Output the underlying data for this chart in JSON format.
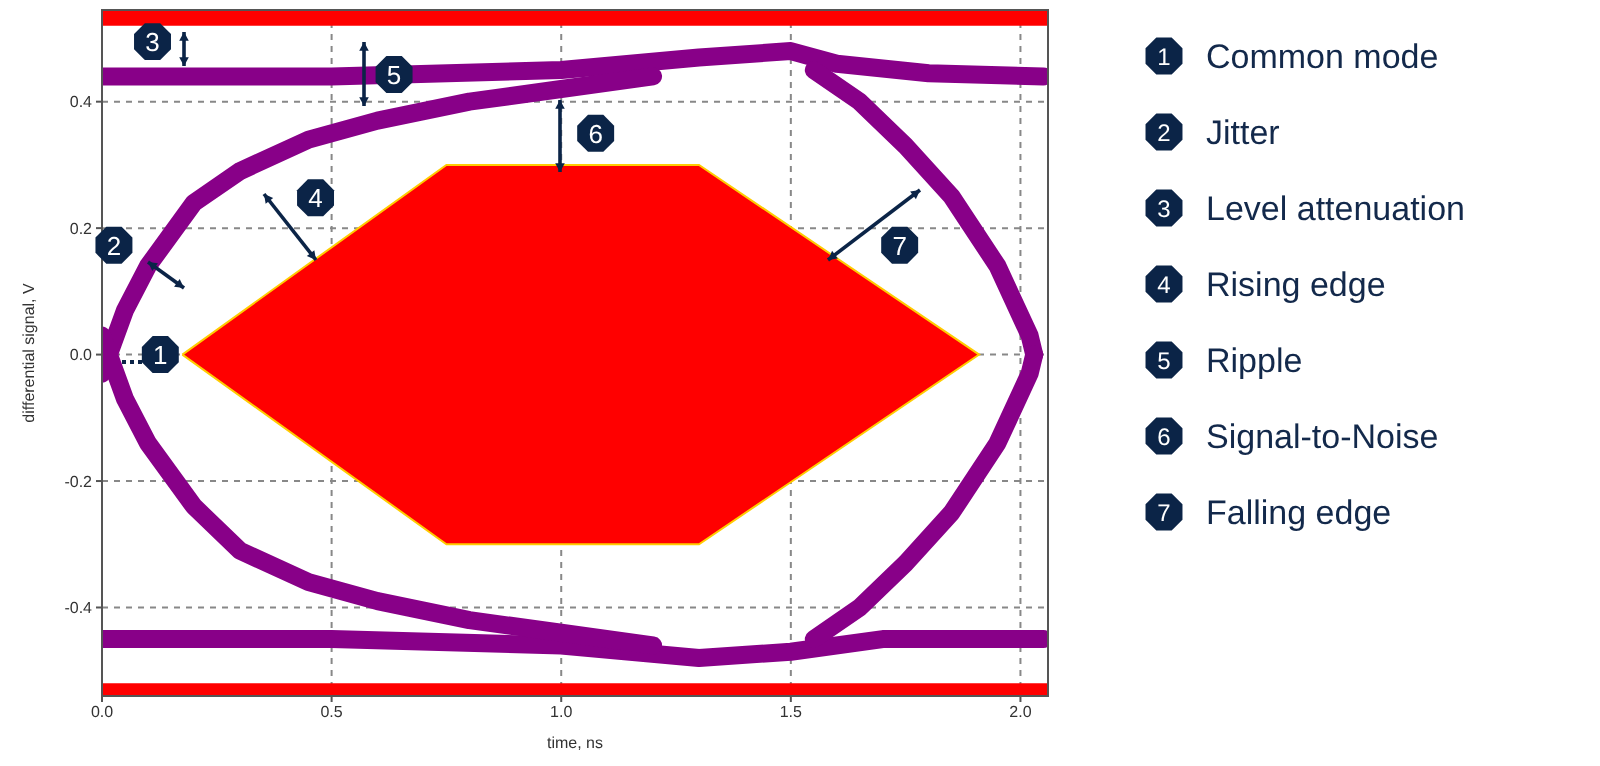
{
  "chart_data": {
    "type": "line",
    "xlabel": "time, ns",
    "ylabel": "differential signal, V",
    "xlim": [
      0,
      2.06
    ],
    "ylim": [
      -0.54,
      0.545
    ],
    "xticks": [
      {
        "value": 0,
        "label": "0.0"
      },
      0.5,
      {
        "value": 1,
        "label": "1.0"
      },
      1.5,
      {
        "value": 2,
        "label": "2.0"
      }
    ],
    "yticks": [
      -0.4,
      -0.2,
      {
        "value": 0,
        "label": "0.0"
      },
      0.2,
      0.4
    ],
    "grid": true,
    "legend": false,
    "marker": "none",
    "line_style": "solid",
    "series": [
      {
        "type": "area",
        "color": "#ff0000",
        "x": [
          0.175,
          0.75,
          1.3,
          1.91,
          1.3,
          0.75,
          0.175
        ],
        "values": [
          0,
          0.3,
          0.3,
          0,
          -0.3,
          -0.3,
          0
        ]
      },
      {
        "color": "#880088",
        "x": [
          0,
          0.5,
          1.0,
          1.3,
          1.5,
          1.6,
          1.8,
          2.05
        ],
        "values": [
          0.44,
          0.44,
          0.45,
          0.47,
          0.48,
          0.46,
          0.445,
          0.44
        ]
      },
      {
        "color": "#880088",
        "x": [
          0,
          0.5,
          1.0,
          1.3,
          1.5,
          1.7,
          2.05
        ],
        "values": [
          -0.45,
          -0.45,
          -0.46,
          -0.48,
          -0.47,
          -0.45,
          -0.45
        ]
      },
      {
        "color": "#880088",
        "x": [
          0,
          0.05,
          0.1,
          0.2,
          0.3,
          0.45,
          0.6,
          0.8,
          1.0,
          1.2
        ],
        "values": [
          -0.03,
          0.07,
          0.14,
          0.24,
          0.29,
          0.34,
          0.37,
          0.4,
          0.42,
          0.44
        ]
      },
      {
        "color": "#880088",
        "x": [
          0,
          0.05,
          0.1,
          0.2,
          0.3,
          0.45,
          0.6,
          0.8,
          1.0,
          1.2
        ],
        "values": [
          0.03,
          -0.07,
          -0.14,
          -0.24,
          -0.31,
          -0.36,
          -0.39,
          -0.42,
          -0.44,
          -0.46
        ]
      },
      {
        "color": "#880088",
        "x": [
          1.55,
          1.65,
          1.75,
          1.85,
          1.95,
          2.02,
          2.03
        ],
        "values": [
          0.45,
          0.4,
          0.33,
          0.25,
          0.14,
          0.03,
          0.0
        ]
      },
      {
        "color": "#880088",
        "x": [
          1.55,
          1.65,
          1.75,
          1.85,
          1.95,
          2.02,
          2.03
        ],
        "values": [
          -0.45,
          -0.4,
          -0.33,
          -0.25,
          -0.14,
          -0.03,
          0.0
        ]
      }
    ],
    "bands": [
      {
        "axis": "y",
        "from": 0.52,
        "to": 0.545,
        "color": "#ff0000"
      },
      {
        "axis": "y",
        "from": -0.54,
        "to": -0.52,
        "color": "#ff0000"
      }
    ],
    "annotations": [
      {
        "text": "1",
        "x": 0.127,
        "y": 0
      },
      {
        "text": "2",
        "x": 0.026,
        "y": 0.173
      },
      {
        "text": "3",
        "x": 0.11,
        "y": 0.495
      },
      {
        "text": "4",
        "x": 0.465,
        "y": 0.248
      },
      {
        "text": "5",
        "x": 0.636,
        "y": 0.443
      },
      {
        "text": "6",
        "x": 1.075,
        "y": 0.35
      },
      {
        "text": "7",
        "x": 1.737,
        "y": 0.173
      },
      "Common mode",
      "Jitter",
      "Level attenuation",
      "Rising edge",
      "Ripple",
      "Signal-to-Noise",
      "Falling edge"
    ]
  }
}
